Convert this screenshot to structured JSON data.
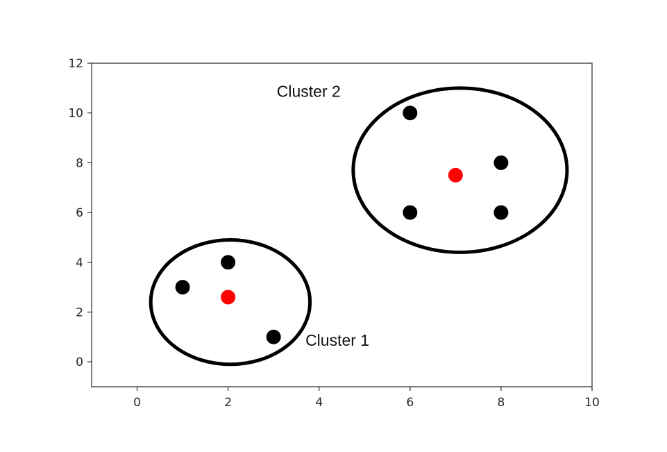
{
  "chart_data": {
    "type": "scatter",
    "title": "",
    "xlabel": "",
    "ylabel": "",
    "xlim": [
      -1,
      10
    ],
    "ylim": [
      -1,
      12
    ],
    "x_ticks": [
      0,
      2,
      4,
      6,
      8,
      10
    ],
    "y_ticks": [
      0,
      2,
      4,
      6,
      8,
      10,
      12
    ],
    "grid": false,
    "series": [
      {
        "role": "data points",
        "color": "#000000",
        "points": [
          {
            "x": 1,
            "y": 3
          },
          {
            "x": 2,
            "y": 4
          },
          {
            "x": 3,
            "y": 1
          },
          {
            "x": 6,
            "y": 10
          },
          {
            "x": 8,
            "y": 8
          },
          {
            "x": 6,
            "y": 6
          },
          {
            "x": 8,
            "y": 6
          }
        ]
      },
      {
        "role": "centroids",
        "color": "#ff0000",
        "points": [
          {
            "x": 2,
            "y": 2.6
          },
          {
            "x": 7,
            "y": 7.5
          }
        ]
      }
    ],
    "cluster_outlines": [
      {
        "cx": 2.05,
        "cy": 2.4,
        "rx": 1.75,
        "ry": 2.5,
        "color": "#000000"
      },
      {
        "cx": 7.1,
        "cy": 7.7,
        "rx": 2.35,
        "ry": 3.3,
        "color": "#000000"
      }
    ],
    "annotations": [
      {
        "text": "Cluster 2",
        "x": 3.07,
        "y": 10.65
      },
      {
        "text": "Cluster 1",
        "x": 3.7,
        "y": 0.65
      }
    ]
  }
}
